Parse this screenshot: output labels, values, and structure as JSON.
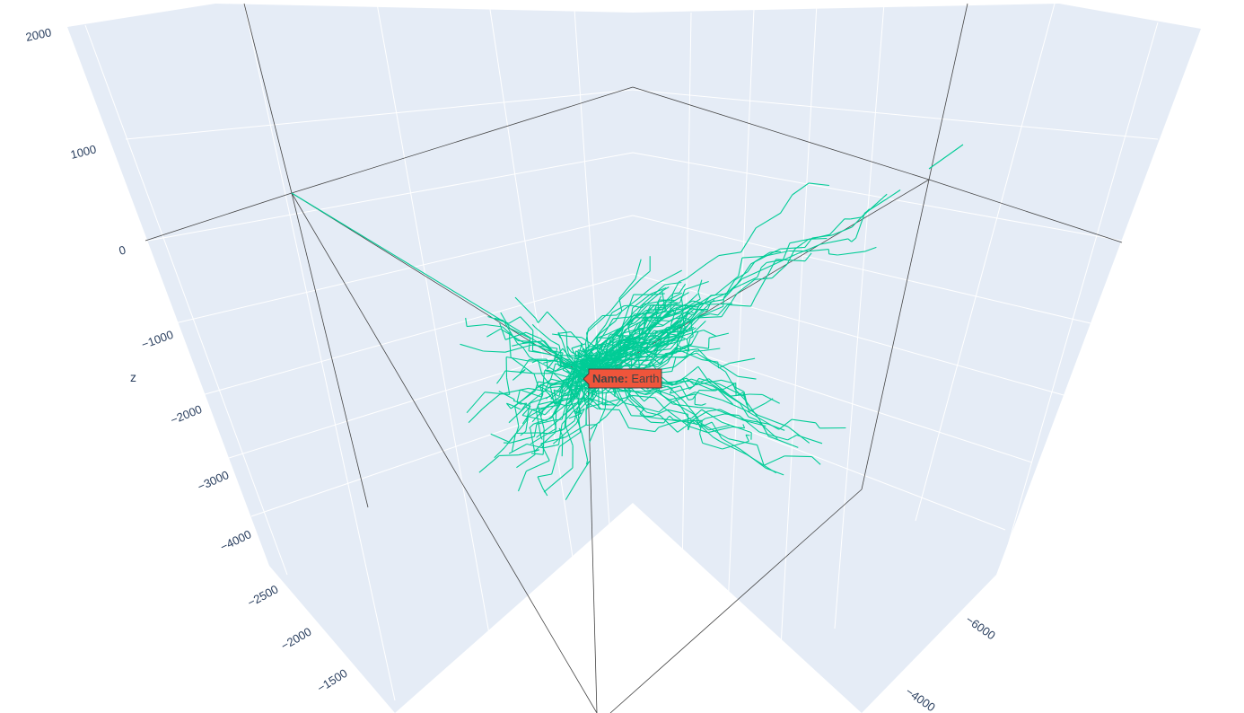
{
  "chart_data": {
    "type": "line",
    "subtype": "3d-network",
    "title": "",
    "line_color": "#00cc96",
    "scene_background": "#e5ecf6",
    "grid": true,
    "axes": {
      "z": {
        "title": "z",
        "ticks": [
          "2000",
          "1000",
          "0",
          "−1000",
          "−2000",
          "−3000",
          "−4000"
        ]
      },
      "x": {
        "title": "",
        "ticks": [
          "−2500",
          "−2000",
          "−1500"
        ]
      },
      "y": {
        "title": "",
        "ticks": [
          "−6000",
          "−4000"
        ]
      }
    },
    "hover": {
      "bold_label": "Name:",
      "value": " Earth",
      "background": "#ef553b"
    }
  }
}
